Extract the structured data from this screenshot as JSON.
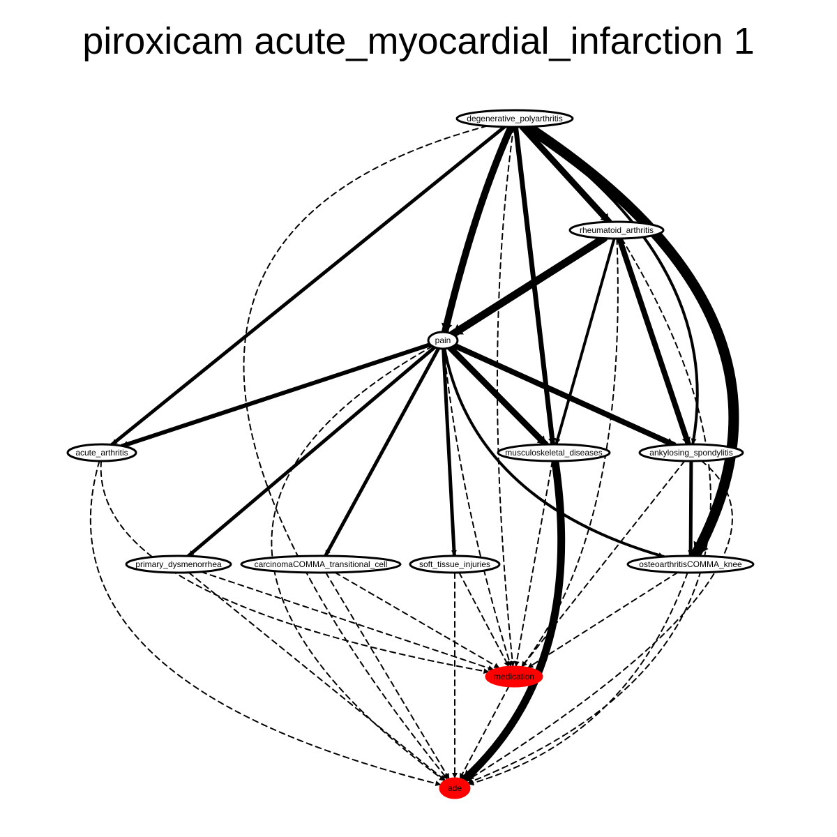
{
  "title": "piroxicam acute_myocardial_infarction 1",
  "colors": {
    "highlight": "#ff0000",
    "edge": "#000000",
    "node_fill": "#ffffff"
  },
  "nodes": [
    {
      "id": "degenerative_polyarthritis",
      "label": "degenerative_polyarthritis",
      "highlight": false
    },
    {
      "id": "rheumatoid_arthritis",
      "label": "rheumatoid_arthritis",
      "highlight": false
    },
    {
      "id": "pain",
      "label": "pain",
      "highlight": false
    },
    {
      "id": "acute_arthritis",
      "label": "acute_arthritis",
      "highlight": false
    },
    {
      "id": "musculoskeletal_diseases",
      "label": "musculoskeletal_diseases",
      "highlight": false
    },
    {
      "id": "ankylosing_spondylitis",
      "label": "ankylosing_spondylitis",
      "highlight": false
    },
    {
      "id": "primary_dysmenorrhea",
      "label": "primary_dysmenorrhea",
      "highlight": false
    },
    {
      "id": "carcinoma_transitional_cell",
      "label": "carcinomaCOMMA_transitional_cell",
      "highlight": false
    },
    {
      "id": "soft_tissue_injuries",
      "label": "soft_tissue_injuries",
      "highlight": false
    },
    {
      "id": "osteoarthritis_knee",
      "label": "osteoarthritisCOMMA_knee",
      "highlight": false
    },
    {
      "id": "medication",
      "label": "medication",
      "highlight": true
    },
    {
      "id": "ade",
      "label": "ade",
      "highlight": true
    }
  ],
  "edges": [
    {
      "from": "degenerative_polyarthritis",
      "to": "pain",
      "style": "solid",
      "weight": 10
    },
    {
      "from": "degenerative_polyarthritis",
      "to": "acute_arthritis",
      "style": "solid",
      "weight": 5
    },
    {
      "from": "degenerative_polyarthritis",
      "to": "rheumatoid_arthritis",
      "style": "solid",
      "weight": 9
    },
    {
      "from": "degenerative_polyarthritis",
      "to": "musculoskeletal_diseases",
      "style": "solid",
      "weight": 7
    },
    {
      "from": "degenerative_polyarthritis",
      "to": "ankylosing_spondylitis",
      "style": "solid",
      "weight": 4
    },
    {
      "from": "degenerative_polyarthritis",
      "to": "osteoarthritis_knee",
      "style": "solid",
      "weight": 15
    },
    {
      "from": "degenerative_polyarthritis",
      "to": "medication",
      "style": "dashed",
      "weight": 2
    },
    {
      "from": "degenerative_polyarthritis",
      "to": "ade",
      "style": "dashed",
      "weight": 2
    },
    {
      "from": "rheumatoid_arthritis",
      "to": "pain",
      "style": "solid",
      "weight": 11
    },
    {
      "from": "rheumatoid_arthritis",
      "to": "musculoskeletal_diseases",
      "style": "solid",
      "weight": 4
    },
    {
      "from": "rheumatoid_arthritis",
      "to": "ankylosing_spondylitis",
      "style": "solid",
      "weight": 8
    },
    {
      "from": "rheumatoid_arthritis",
      "to": "medication",
      "style": "dashed",
      "weight": 2
    },
    {
      "from": "rheumatoid_arthritis",
      "to": "ade",
      "style": "dashed",
      "weight": 2
    },
    {
      "from": "pain",
      "to": "acute_arthritis",
      "style": "solid",
      "weight": 6
    },
    {
      "from": "pain",
      "to": "musculoskeletal_diseases",
      "style": "solid",
      "weight": 9
    },
    {
      "from": "pain",
      "to": "ankylosing_spondylitis",
      "style": "solid",
      "weight": 8
    },
    {
      "from": "pain",
      "to": "primary_dysmenorrhea",
      "style": "solid",
      "weight": 5
    },
    {
      "from": "pain",
      "to": "carcinoma_transitional_cell",
      "style": "solid",
      "weight": 5
    },
    {
      "from": "pain",
      "to": "soft_tissue_injuries",
      "style": "solid",
      "weight": 5
    },
    {
      "from": "pain",
      "to": "osteoarthritis_knee",
      "style": "solid",
      "weight": 4
    },
    {
      "from": "pain",
      "to": "medication",
      "style": "dashed",
      "weight": 2
    },
    {
      "from": "pain",
      "to": "ade",
      "style": "dashed",
      "weight": 2
    },
    {
      "from": "acute_arthritis",
      "to": "medication",
      "style": "dashed",
      "weight": 2
    },
    {
      "from": "acute_arthritis",
      "to": "ade",
      "style": "dashed",
      "weight": 2
    },
    {
      "from": "musculoskeletal_diseases",
      "to": "medication",
      "style": "dashed",
      "weight": 2
    },
    {
      "from": "musculoskeletal_diseases",
      "to": "ade",
      "style": "solid",
      "weight": 11
    },
    {
      "from": "ankylosing_spondylitis",
      "to": "osteoarthritis_knee",
      "style": "solid",
      "weight": 5
    },
    {
      "from": "ankylosing_spondylitis",
      "to": "medication",
      "style": "dashed",
      "weight": 2
    },
    {
      "from": "ankylosing_spondylitis",
      "to": "ade",
      "style": "dashed",
      "weight": 2
    },
    {
      "from": "primary_dysmenorrhea",
      "to": "medication",
      "style": "dashed",
      "weight": 2
    },
    {
      "from": "primary_dysmenorrhea",
      "to": "ade",
      "style": "dashed",
      "weight": 2
    },
    {
      "from": "carcinoma_transitional_cell",
      "to": "medication",
      "style": "dashed",
      "weight": 2
    },
    {
      "from": "carcinoma_transitional_cell",
      "to": "ade",
      "style": "dashed",
      "weight": 2
    },
    {
      "from": "soft_tissue_injuries",
      "to": "medication",
      "style": "dashed",
      "weight": 2
    },
    {
      "from": "soft_tissue_injuries",
      "to": "ade",
      "style": "dashed",
      "weight": 2
    },
    {
      "from": "osteoarthritis_knee",
      "to": "medication",
      "style": "dashed",
      "weight": 2
    },
    {
      "from": "osteoarthritis_knee",
      "to": "ade",
      "style": "dashed",
      "weight": 2
    },
    {
      "from": "medication",
      "to": "ade",
      "style": "dashed",
      "weight": 2
    }
  ]
}
